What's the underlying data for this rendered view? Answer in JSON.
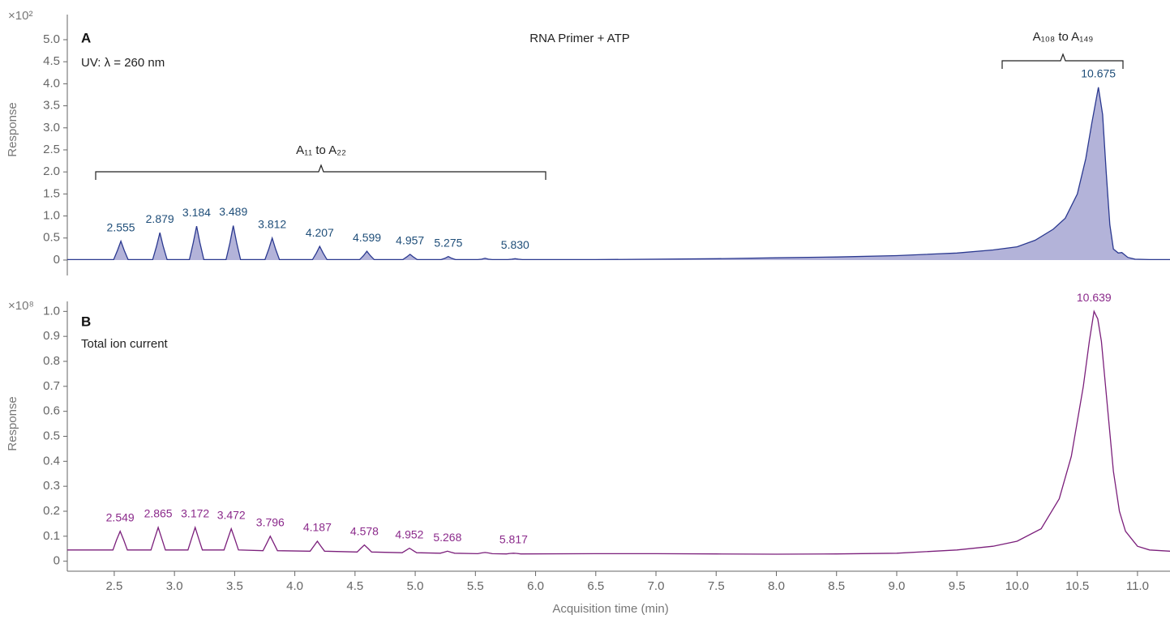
{
  "chart_data": [
    {
      "type": "area",
      "title": "RNA Primer + ATP",
      "panel_label": "A",
      "subtitle": "UV: λ = 260 nm",
      "ylabel": "Response",
      "y_multiplier": "×10²",
      "annotations": [
        "A₁₁ to A₂₂",
        "A₁₀₈ to A₁₄₉"
      ],
      "color": "#2b3990",
      "fill": "#b3b3d9",
      "label_color": "#1f4e79",
      "xlim": [
        2.11,
        11.27
      ],
      "ylim": [
        -0.35,
        5.57
      ],
      "yticks": [
        0,
        0.5,
        {
          "value": 1,
          "label": "1.0"
        },
        1.5,
        {
          "value": 2,
          "label": "2.0"
        },
        2.5,
        {
          "value": 3,
          "label": "3.0"
        },
        3.5,
        {
          "value": 4,
          "label": "4.0"
        },
        4.5,
        {
          "value": 5,
          "label": "5.0"
        }
      ],
      "x": [
        2.11,
        2.495,
        2.527,
        2.555,
        2.583,
        2.615,
        2.819,
        2.851,
        2.879,
        2.907,
        2.939,
        3.124,
        3.156,
        3.184,
        3.212,
        3.244,
        3.429,
        3.461,
        3.489,
        3.517,
        3.549,
        3.752,
        3.784,
        3.812,
        3.84,
        3.872,
        4.147,
        4.179,
        4.207,
        4.235,
        4.267,
        4.539,
        4.571,
        4.599,
        4.627,
        4.659,
        4.897,
        4.929,
        4.957,
        4.985,
        5.017,
        5.215,
        5.247,
        5.275,
        5.303,
        5.335,
        5.52,
        5.552,
        5.58,
        5.608,
        5.64,
        5.77,
        5.802,
        5.83,
        5.858,
        5.89,
        6.5,
        7,
        7.5,
        8,
        8.5,
        9,
        9.5,
        9.8,
        10,
        10.15,
        10.3,
        10.4,
        10.5,
        10.57,
        10.62,
        10.675,
        10.71,
        10.74,
        10.77,
        10.8,
        10.84,
        10.87,
        10.92,
        10.98,
        11.1,
        11.27
      ],
      "values": [
        0.01,
        0.01,
        0.22,
        0.43,
        0.22,
        0.01,
        0.01,
        0.31,
        0.62,
        0.31,
        0.01,
        0.01,
        0.39,
        0.77,
        0.39,
        0.01,
        0.01,
        0.39,
        0.78,
        0.39,
        0.01,
        0.01,
        0.25,
        0.5,
        0.25,
        0.01,
        0.01,
        0.16,
        0.31,
        0.16,
        0.01,
        0.01,
        0.1,
        0.2,
        0.1,
        0.01,
        0.01,
        0.07,
        0.13,
        0.07,
        0.01,
        0.01,
        0.04,
        0.08,
        0.04,
        0.01,
        0.01,
        0.02,
        0.04,
        0.02,
        0.01,
        0.01,
        0.02,
        0.03,
        0.02,
        0.01,
        0.01,
        0.02,
        0.03,
        0.05,
        0.07,
        0.1,
        0.16,
        0.23,
        0.3,
        0.45,
        0.7,
        0.95,
        1.5,
        2.3,
        3.1,
        3.92,
        3.3,
        2,
        0.8,
        0.25,
        0.16,
        0.17,
        0.06,
        0.02,
        0.01,
        0.01
      ],
      "peak_labels": {
        "x": [
          2.555,
          2.879,
          3.184,
          3.489,
          3.812,
          4.207,
          4.599,
          4.957,
          5.275,
          5.83,
          10.675
        ],
        "labels": [
          "2.555",
          "2.879",
          "3.184",
          "3.489",
          "3.812",
          "4.207",
          "4.599",
          "4.957",
          "5.275",
          "5.830",
          "10.675"
        ]
      }
    },
    {
      "type": "line",
      "panel_label": "B",
      "subtitle": "Total ion current",
      "ylabel": "Response",
      "y_multiplier": "×10⁸",
      "xlabel": "Acquisition time (min)",
      "color": "#7b1f7b",
      "label_color": "#8b2a8b",
      "xlim": [
        2.11,
        11.27
      ],
      "ylim": [
        -0.04,
        1.04
      ],
      "xticks": [
        2.5,
        {
          "value": 3,
          "label": "3.0"
        },
        3.5,
        {
          "value": 4,
          "label": "4.0"
        },
        4.5,
        {
          "value": 5,
          "label": "5.0"
        },
        5.5,
        {
          "value": 6,
          "label": "6.0"
        },
        6.5,
        {
          "value": 7,
          "label": "7.0"
        },
        7.5,
        {
          "value": 8,
          "label": "8.0"
        },
        8.5,
        {
          "value": 9,
          "label": "9.0"
        },
        9.5,
        {
          "value": 10,
          "label": "10.0"
        },
        10.5,
        {
          "value": 11,
          "label": "11.0"
        }
      ],
      "yticks": [
        0,
        0.1,
        0.2,
        0.3,
        0.4,
        0.5,
        0.6,
        0.7,
        0.8,
        0.9,
        {
          "value": 1,
          "label": "1.0"
        }
      ],
      "x": [
        2.11,
        2.489,
        2.519,
        2.549,
        2.579,
        2.609,
        2.805,
        2.835,
        2.865,
        2.895,
        2.925,
        3.112,
        3.142,
        3.172,
        3.202,
        3.232,
        3.412,
        3.442,
        3.472,
        3.502,
        3.532,
        3.736,
        3.766,
        3.796,
        3.826,
        3.856,
        4.127,
        4.157,
        4.187,
        4.217,
        4.247,
        4.518,
        4.548,
        4.578,
        4.608,
        4.638,
        4.892,
        4.922,
        4.952,
        4.982,
        5.012,
        5.208,
        5.238,
        5.268,
        5.298,
        5.328,
        5.52,
        5.55,
        5.58,
        5.61,
        5.64,
        5.757,
        5.787,
        5.817,
        5.847,
        5.877,
        6.5,
        7,
        7.5,
        8,
        8.5,
        9,
        9.5,
        9.8,
        10,
        10.2,
        10.35,
        10.45,
        10.55,
        10.6,
        10.639,
        10.67,
        10.7,
        10.75,
        10.8,
        10.85,
        10.9,
        11,
        11.1,
        11.27
      ],
      "values": [
        0.045,
        0.045,
        0.085,
        0.12,
        0.085,
        0.045,
        0.045,
        0.09,
        0.135,
        0.09,
        0.045,
        0.045,
        0.09,
        0.135,
        0.09,
        0.045,
        0.045,
        0.088,
        0.13,
        0.088,
        0.045,
        0.042,
        0.071,
        0.1,
        0.071,
        0.042,
        0.04,
        0.06,
        0.08,
        0.06,
        0.04,
        0.037,
        0.051,
        0.065,
        0.051,
        0.037,
        0.034,
        0.043,
        0.052,
        0.043,
        0.034,
        0.032,
        0.036,
        0.04,
        0.036,
        0.032,
        0.03,
        0.033,
        0.035,
        0.033,
        0.03,
        0.029,
        0.031,
        0.032,
        0.031,
        0.029,
        0.03,
        0.03,
        0.029,
        0.028,
        0.029,
        0.032,
        0.045,
        0.06,
        0.08,
        0.13,
        0.25,
        0.42,
        0.7,
        0.88,
        1.0,
        0.97,
        0.88,
        0.62,
        0.36,
        0.2,
        0.12,
        0.06,
        0.045,
        0.04
      ],
      "peak_labels": {
        "x": [
          2.549,
          2.865,
          3.172,
          3.472,
          3.796,
          4.187,
          4.578,
          4.952,
          5.268,
          5.817,
          10.639
        ],
        "labels": [
          "2.549",
          "2.865",
          "3.172",
          "3.472",
          "3.796",
          "4.187",
          "4.578",
          "4.952",
          "5.268",
          "5.817",
          "10.639"
        ]
      }
    }
  ]
}
